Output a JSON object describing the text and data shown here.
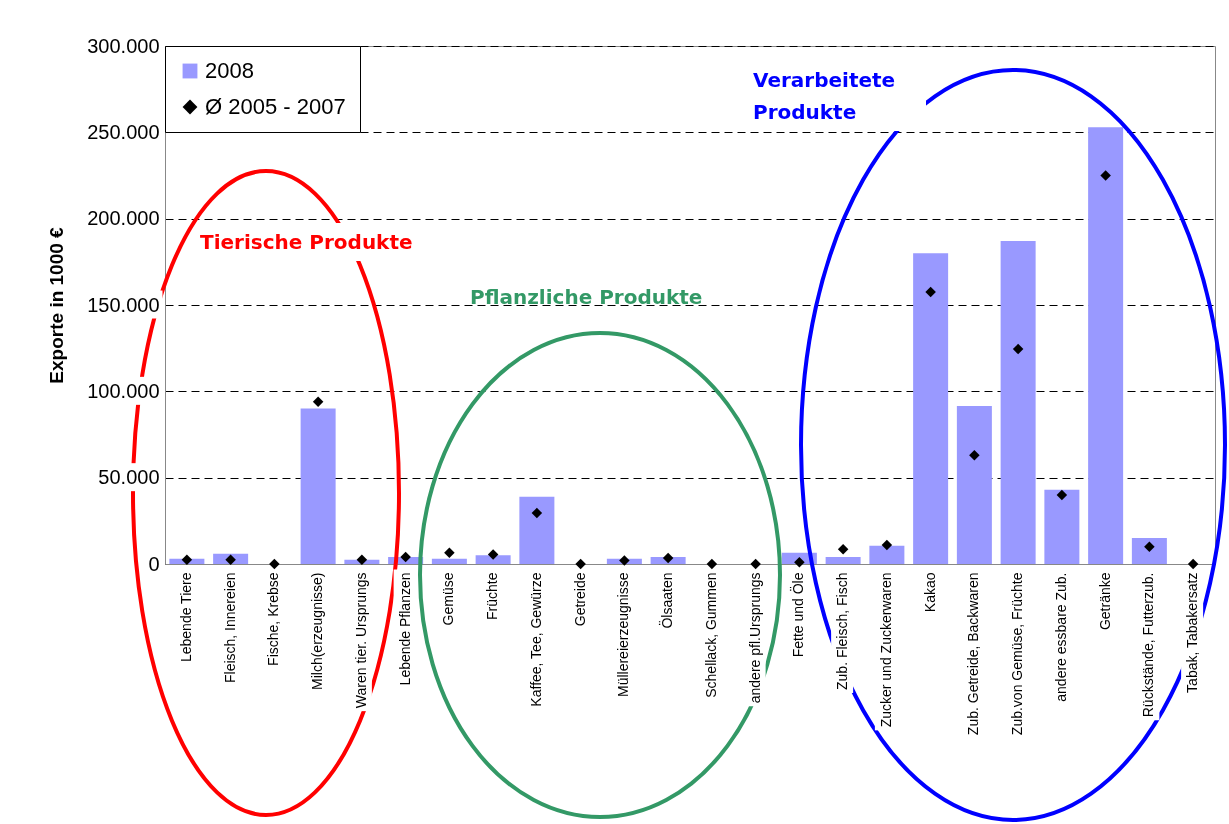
{
  "chart_data": {
    "type": "bar",
    "ylabel": "Exporte in 1000 €",
    "categories": [
      "Lebende Tiere",
      "Fleisch, Innereien",
      "Fische, Krebse",
      "Milch(erzeugnisse)",
      "Waren tier. Ursprungs",
      "Lebende Pflanzen",
      "Gemüse",
      "Früchte",
      "Kaffee, Tee, Gewürze",
      "Getreide",
      "Müllereierzeugnisse",
      "Ölsaaten",
      "Schellack, Gummen",
      "andere pfl.Ursprungs",
      "Fette und Öle",
      "Zub. Fleisch, Fisch",
      "Zucker und Zuckerwaren",
      "Kakao",
      "Zub. Getreide, Backwaren",
      "Zub.von Gemüse, Früchte",
      "andere essbare Zub.",
      "Getränke",
      "Rückstände, Futterzub.",
      "Tabak, Tabakersatz"
    ],
    "series": [
      {
        "name": "2008",
        "color": "#9999ff",
        "values": [
          3000,
          6000,
          0,
          90000,
          2500,
          4000,
          3000,
          5000,
          39000,
          0,
          3000,
          4000,
          0,
          0,
          6500,
          4000,
          10500,
          180000,
          91500,
          187000,
          43000,
          253000,
          15000,
          0
        ]
      },
      {
        "name": "Ø 2005 - 2007",
        "type": "scatter",
        "marker": "diamond",
        "color": "#000000",
        "values": [
          2500,
          2500,
          0,
          94000,
          2500,
          4000,
          6500,
          5500,
          29500,
          0,
          2000,
          3500,
          0,
          0,
          1000,
          8500,
          11000,
          157500,
          63000,
          124500,
          40000,
          225000,
          10000,
          0
        ]
      }
    ],
    "ylim": [
      0,
      300000
    ],
    "yticks": [
      0,
      {
        "value": 50000,
        "label": "50.000"
      },
      {
        "value": 100000,
        "label": "100.000"
      },
      {
        "value": 150000,
        "label": "150.000"
      },
      {
        "value": 200000,
        "label": "200.000"
      },
      {
        "value": 250000,
        "label": "250.000"
      },
      {
        "value": 300000,
        "label": "300.000"
      }
    ],
    "grid": "y",
    "legend": "top left",
    "annotations": [
      "Tierische Produkte",
      "Pflanzliche Produkte",
      "Verarbeitete Produkte"
    ]
  }
}
